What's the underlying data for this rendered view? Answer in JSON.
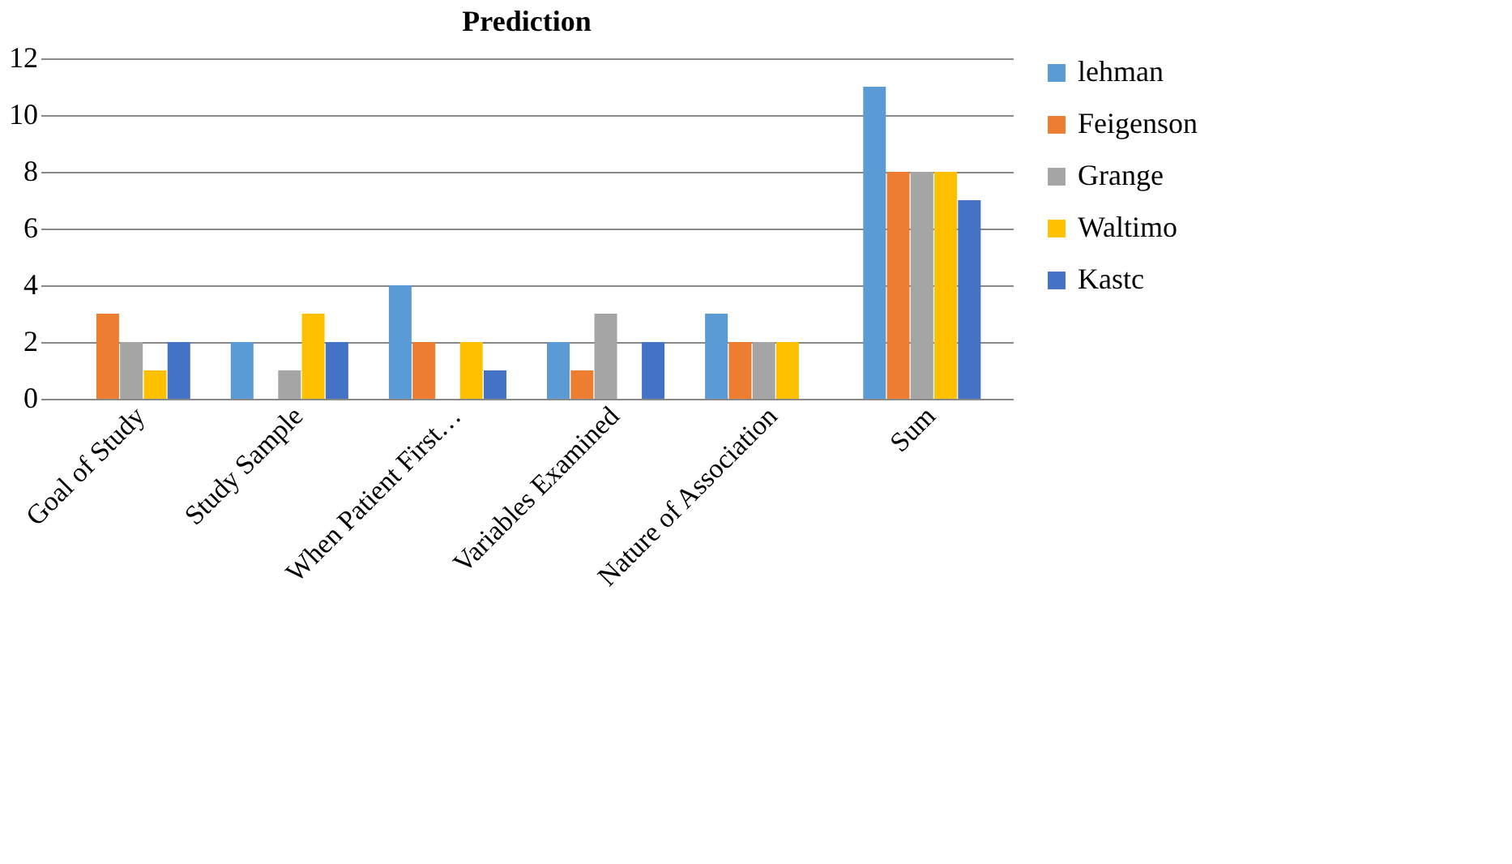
{
  "chart_data": {
    "type": "bar",
    "title": "Prediction",
    "categories": [
      "Goal of Study",
      "Study Sample",
      "When Patient First…",
      "Variables Examined",
      "Nature of Association",
      "Sum"
    ],
    "series": [
      {
        "name": "lehman",
        "color": "#5b9bd5",
        "values": [
          0,
          2,
          4,
          2,
          3,
          11
        ]
      },
      {
        "name": "Feigenson",
        "color": "#ed7d31",
        "values": [
          3,
          0,
          2,
          1,
          2,
          8
        ]
      },
      {
        "name": "Grange",
        "color": "#a5a5a5",
        "values": [
          2,
          1,
          0,
          3,
          2,
          8
        ]
      },
      {
        "name": "Waltimo",
        "color": "#ffc000",
        "values": [
          1,
          3,
          2,
          0,
          2,
          8
        ]
      },
      {
        "name": "Kastc",
        "color": "#4472c4",
        "values": [
          2,
          2,
          1,
          2,
          0,
          7
        ]
      }
    ],
    "ylim": [
      0,
      12
    ],
    "yticks": [
      0,
      2,
      4,
      6,
      8,
      10,
      12
    ],
    "grid": "y",
    "legend": "right"
  }
}
